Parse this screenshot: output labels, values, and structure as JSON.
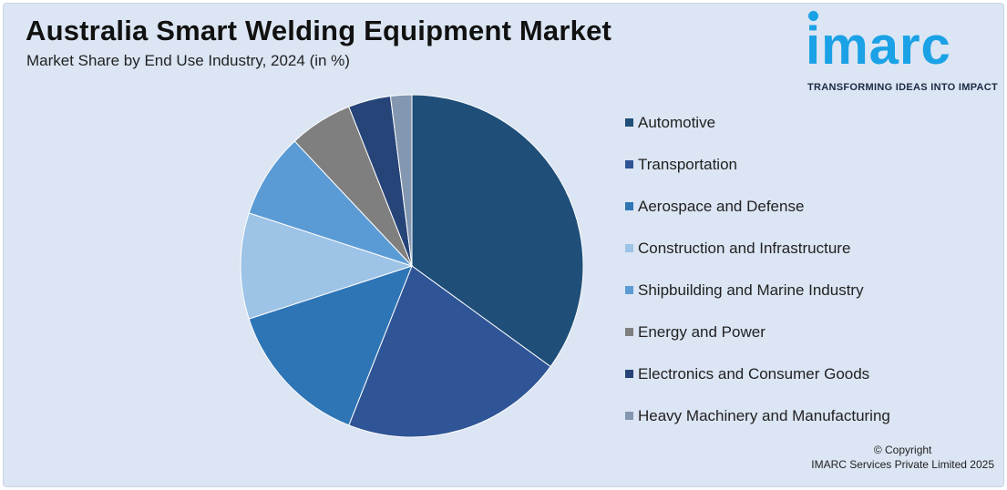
{
  "header": {
    "title": "Australia Smart Welding Equipment Market",
    "subtitle": "Market Share by End Use Industry, 2024 (in %)"
  },
  "logo": {
    "word": "imarc",
    "tagline": "TRANSFORMING IDEAS INTO IMPACT",
    "color": "#1aa1e6"
  },
  "footer": {
    "copyright": "© Copyright",
    "company": "IMARC Services Private Limited 2025"
  },
  "chart_data": {
    "type": "pie",
    "title": "Australia Smart Welding Equipment Market",
    "subtitle": "Market Share by End Use Industry, 2024 (in %)",
    "legend_position": "right",
    "categories": [
      "Automotive",
      "Transportation",
      "Aerospace and Defense",
      "Construction and Infrastructure",
      "Shipbuilding and Marine Industry",
      "Energy and Power",
      "Electronics and Consumer Goods",
      "Heavy Machinery and Manufacturing"
    ],
    "values": [
      35,
      21,
      14,
      10,
      8,
      6,
      4,
      2
    ],
    "colors": [
      "#1f4e79",
      "#2f5597",
      "#2e75b6",
      "#9dc3e6",
      "#5b9bd5",
      "#7f7f7f",
      "#264478",
      "#8497b0"
    ]
  }
}
